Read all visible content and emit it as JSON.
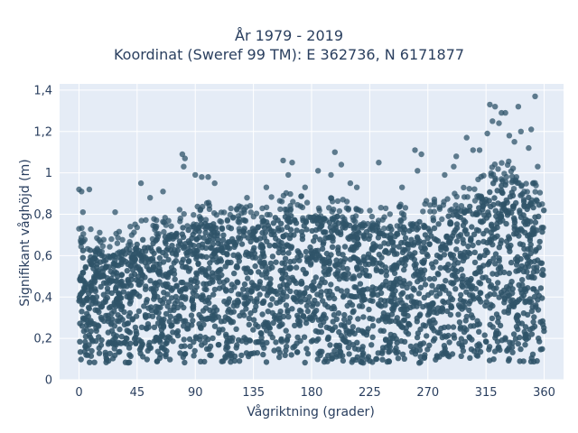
{
  "chart_data": {
    "type": "scatter",
    "title_lines": [
      "År 1979 - 2019",
      "Koordinat (Sweref 99 TM): E 362736, N 6171877"
    ],
    "xlabel": "Vågriktning (grader)",
    "ylabel": "Signifikant våghöjd (m)",
    "xlim": [
      -15,
      375
    ],
    "ylim": [
      0,
      1.43
    ],
    "x_ticks": [
      0,
      45,
      90,
      135,
      180,
      225,
      270,
      315,
      360
    ],
    "x_tick_labels": [
      "0",
      "45",
      "90",
      "135",
      "180",
      "225",
      "270",
      "315",
      "360"
    ],
    "y_ticks": [
      0,
      0.2,
      0.4,
      0.6,
      0.8,
      1.0,
      1.2,
      1.4
    ],
    "y_tick_labels": [
      "0",
      "0,2",
      "0,4",
      "0,6",
      "0,8",
      "1",
      "1,2",
      "1,4"
    ],
    "grid": true,
    "colors": {
      "background": "#e5ecf6",
      "marker": "#2f5469",
      "grid": "#ffffff"
    },
    "upper_envelope": [
      {
        "x": 0,
        "y": 0.66
      },
      {
        "x": 10,
        "y": 0.63
      },
      {
        "x": 20,
        "y": 0.6
      },
      {
        "x": 30,
        "y": 0.62
      },
      {
        "x": 40,
        "y": 0.65
      },
      {
        "x": 50,
        "y": 0.68
      },
      {
        "x": 60,
        "y": 0.68
      },
      {
        "x": 70,
        "y": 0.7
      },
      {
        "x": 80,
        "y": 0.74
      },
      {
        "x": 90,
        "y": 0.75
      },
      {
        "x": 100,
        "y": 0.76
      },
      {
        "x": 110,
        "y": 0.76
      },
      {
        "x": 120,
        "y": 0.74
      },
      {
        "x": 130,
        "y": 0.74
      },
      {
        "x": 140,
        "y": 0.76
      },
      {
        "x": 150,
        "y": 0.79
      },
      {
        "x": 160,
        "y": 0.81
      },
      {
        "x": 170,
        "y": 0.8
      },
      {
        "x": 180,
        "y": 0.79
      },
      {
        "x": 190,
        "y": 0.78
      },
      {
        "x": 200,
        "y": 0.78
      },
      {
        "x": 210,
        "y": 0.76
      },
      {
        "x": 220,
        "y": 0.75
      },
      {
        "x": 230,
        "y": 0.75
      },
      {
        "x": 240,
        "y": 0.74
      },
      {
        "x": 250,
        "y": 0.75
      },
      {
        "x": 260,
        "y": 0.76
      },
      {
        "x": 270,
        "y": 0.77
      },
      {
        "x": 280,
        "y": 0.78
      },
      {
        "x": 290,
        "y": 0.8
      },
      {
        "x": 300,
        "y": 0.84
      },
      {
        "x": 310,
        "y": 0.88
      },
      {
        "x": 320,
        "y": 0.95
      },
      {
        "x": 330,
        "y": 0.97
      },
      {
        "x": 340,
        "y": 0.92
      },
      {
        "x": 350,
        "y": 0.88
      },
      {
        "x": 360,
        "y": 0.86
      }
    ],
    "lower_bound": 0.08,
    "outliers": [
      {
        "x": 0,
        "y": 0.92
      },
      {
        "x": 2,
        "y": 0.91
      },
      {
        "x": 8,
        "y": 0.92
      },
      {
        "x": 3,
        "y": 0.81
      },
      {
        "x": 0,
        "y": 0.73
      },
      {
        "x": 28,
        "y": 0.81
      },
      {
        "x": 48,
        "y": 0.95
      },
      {
        "x": 55,
        "y": 0.88
      },
      {
        "x": 65,
        "y": 0.91
      },
      {
        "x": 80,
        "y": 1.09
      },
      {
        "x": 82,
        "y": 1.07
      },
      {
        "x": 81,
        "y": 1.03
      },
      {
        "x": 90,
        "y": 0.99
      },
      {
        "x": 95,
        "y": 0.98
      },
      {
        "x": 100,
        "y": 0.98
      },
      {
        "x": 105,
        "y": 0.95
      },
      {
        "x": 130,
        "y": 0.88
      },
      {
        "x": 145,
        "y": 0.93
      },
      {
        "x": 158,
        "y": 1.06
      },
      {
        "x": 165,
        "y": 1.05
      },
      {
        "x": 162,
        "y": 0.99
      },
      {
        "x": 175,
        "y": 0.93
      },
      {
        "x": 185,
        "y": 1.01
      },
      {
        "x": 195,
        "y": 0.99
      },
      {
        "x": 198,
        "y": 1.1
      },
      {
        "x": 203,
        "y": 1.04
      },
      {
        "x": 210,
        "y": 0.95
      },
      {
        "x": 215,
        "y": 0.93
      },
      {
        "x": 232,
        "y": 1.05
      },
      {
        "x": 250,
        "y": 0.93
      },
      {
        "x": 260,
        "y": 1.11
      },
      {
        "x": 265,
        "y": 1.09
      },
      {
        "x": 262,
        "y": 1.01
      },
      {
        "x": 283,
        "y": 0.99
      },
      {
        "x": 290,
        "y": 1.03
      },
      {
        "x": 292,
        "y": 1.08
      },
      {
        "x": 300,
        "y": 1.17
      },
      {
        "x": 305,
        "y": 1.11
      },
      {
        "x": 310,
        "y": 1.11
      },
      {
        "x": 316,
        "y": 1.19
      },
      {
        "x": 318,
        "y": 1.33
      },
      {
        "x": 322,
        "y": 1.32
      },
      {
        "x": 320,
        "y": 1.25
      },
      {
        "x": 325,
        "y": 1.24
      },
      {
        "x": 327,
        "y": 1.29
      },
      {
        "x": 330,
        "y": 1.29
      },
      {
        "x": 333,
        "y": 1.18
      },
      {
        "x": 340,
        "y": 1.32
      },
      {
        "x": 342,
        "y": 1.2
      },
      {
        "x": 350,
        "y": 1.21
      },
      {
        "x": 353,
        "y": 1.37
      },
      {
        "x": 355,
        "y": 1.03
      },
      {
        "x": 348,
        "y": 1.12
      },
      {
        "x": 337,
        "y": 1.15
      }
    ]
  }
}
